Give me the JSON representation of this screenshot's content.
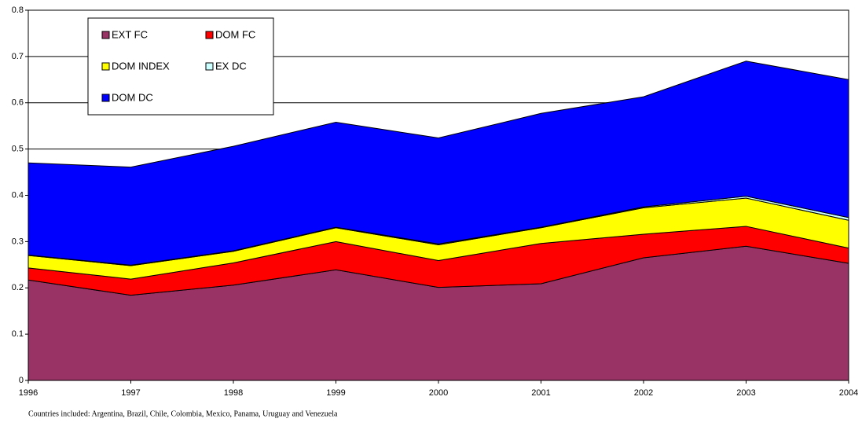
{
  "chart_data": {
    "type": "area",
    "stacked": true,
    "categories": [
      "1996",
      "1997",
      "1998",
      "1999",
      "2000",
      "2001",
      "2002",
      "2003",
      "2004"
    ],
    "series": [
      {
        "name": "EXT FC",
        "color": "#993366",
        "values": [
          0.217,
          0.184,
          0.206,
          0.239,
          0.201,
          0.209,
          0.265,
          0.29,
          0.253
        ]
      },
      {
        "name": "DOM FC",
        "color": "#ff0000",
        "values": [
          0.026,
          0.035,
          0.048,
          0.061,
          0.058,
          0.087,
          0.051,
          0.043,
          0.033
        ]
      },
      {
        "name": "DOM INDEX",
        "color": "#ffff00",
        "values": [
          0.027,
          0.029,
          0.025,
          0.03,
          0.034,
          0.034,
          0.057,
          0.061,
          0.06
        ]
      },
      {
        "name": "EX DC",
        "color": "#ccffff",
        "values": [
          0.001,
          0.001,
          0.001,
          0.001,
          0.002,
          0.001,
          0.002,
          0.004,
          0.006
        ]
      },
      {
        "name": "DOM DC",
        "color": "#0000ff",
        "values": [
          0.199,
          0.212,
          0.226,
          0.227,
          0.229,
          0.246,
          0.238,
          0.292,
          0.298
        ]
      }
    ],
    "ylim": [
      0,
      0.8
    ],
    "yticks": [
      0,
      0.1,
      0.2,
      0.3,
      0.4,
      0.5,
      0.6,
      0.7,
      0.8
    ],
    "grid": true,
    "legend": "top-left",
    "note": "Countries included: Argentina, Brazil, Chile, Colombia, Mexico,  Panama, Uruguay and Venezuela"
  }
}
